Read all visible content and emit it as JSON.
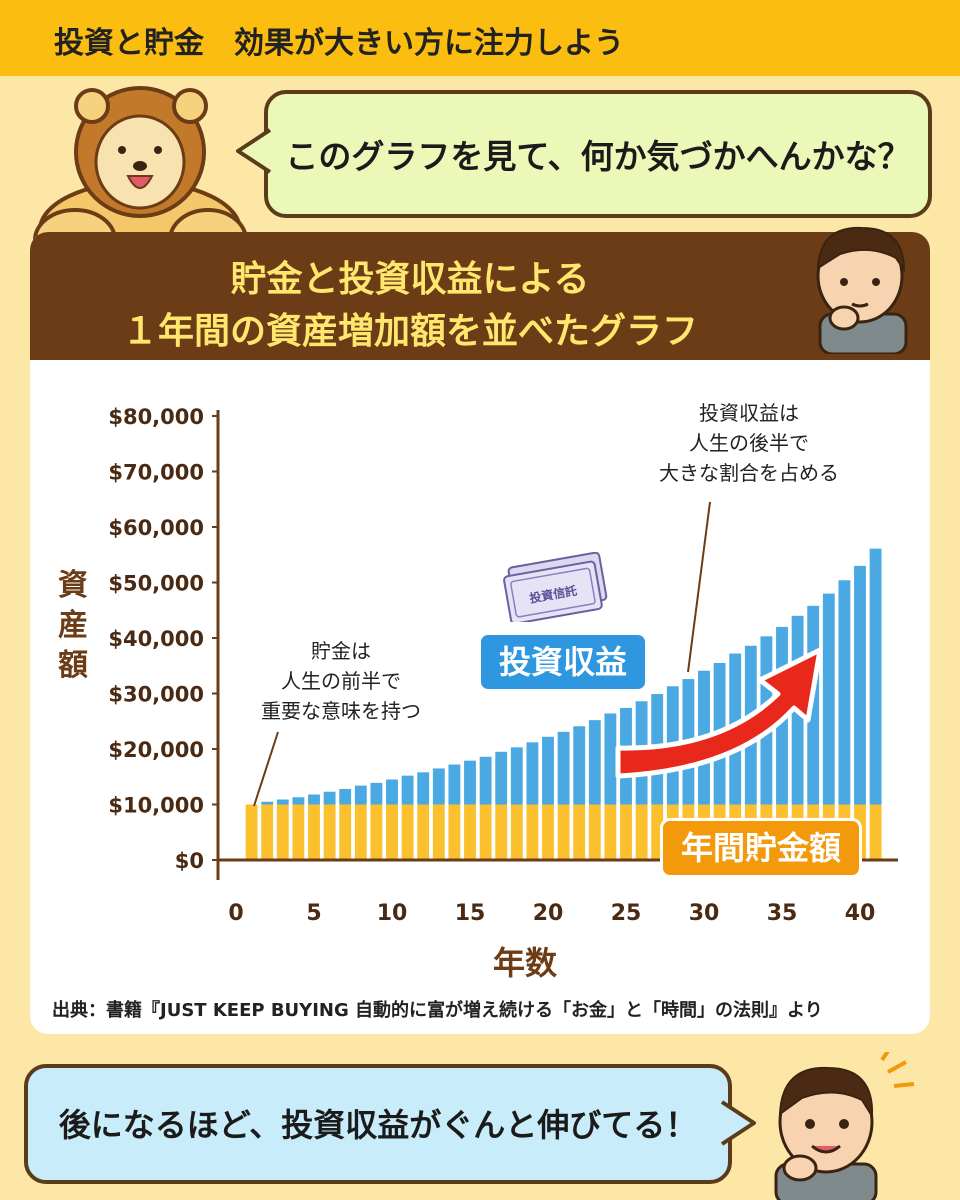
{
  "header": {
    "title": "投資と貯金　効果が大きい方に注力しよう"
  },
  "bubble_top": {
    "text": "このグラフを見て、何か気づかへんかな？"
  },
  "card": {
    "title_line1": "貯金と投資収益による",
    "title_line2": "１年間の資産増加額を並べたグラフ"
  },
  "annotations": {
    "savings_note": [
      "貯金は",
      "人生の前半で",
      "重要な意味を持つ"
    ],
    "invest_note": [
      "投資収益は",
      "人生の後半で",
      "大きな割合を占める"
    ],
    "invest_label": "投資収益",
    "savings_label": "年間貯金額",
    "ticket_label": "投資信託"
  },
  "source": "出典：書籍『JUST KEEP BUYING 自動的に富が増え続ける「お金」と「時間」の法則』より",
  "bubble_bottom": {
    "text": "後になるほど、投資収益がぐんと伸びてる！"
  },
  "colors": {
    "savings": "#fbc02d",
    "investment": "#4aa8e3",
    "brown": "#6b3c15",
    "arrow": "#e8281a"
  },
  "chart_data": {
    "type": "bar",
    "stacked": true,
    "xlabel": "年数",
    "ylabel": "資産額",
    "xlim": [
      0,
      42
    ],
    "ylim": [
      0,
      80000
    ],
    "x_ticks": [
      0,
      5,
      10,
      15,
      20,
      25,
      30,
      35,
      40
    ],
    "y_ticks": [
      0,
      10000,
      20000,
      30000,
      40000,
      50000,
      60000,
      70000,
      80000
    ],
    "y_tick_labels": [
      "$0",
      "$10,000",
      "$20,000",
      "$30,000",
      "$40,000",
      "$50,000",
      "$60,000",
      "$70,000",
      "$80,000"
    ],
    "x": [
      1,
      2,
      3,
      4,
      5,
      6,
      7,
      8,
      9,
      10,
      11,
      12,
      13,
      14,
      15,
      16,
      17,
      18,
      19,
      20,
      21,
      22,
      23,
      24,
      25,
      26,
      27,
      28,
      29,
      30,
      31,
      32,
      33,
      34,
      35,
      36,
      37,
      38,
      39,
      40,
      41
    ],
    "series": [
      {
        "name": "年間貯金額",
        "values": [
          10000,
          10000,
          10000,
          10000,
          10000,
          10000,
          10000,
          10000,
          10000,
          10000,
          10000,
          10000,
          10000,
          10000,
          10000,
          10000,
          10000,
          10000,
          10000,
          10000,
          10000,
          10000,
          10000,
          10000,
          10000,
          10000,
          10000,
          10000,
          10000,
          10000,
          10000,
          10000,
          10000,
          10000,
          10000,
          10000,
          10000,
          10000,
          10000,
          10000,
          10000
        ]
      },
      {
        "name": "投資収益",
        "values": [
          0,
          500,
          900,
          1300,
          1800,
          2300,
          2800,
          3400,
          3900,
          4500,
          5200,
          5800,
          6500,
          7200,
          7900,
          8600,
          9500,
          10300,
          11200,
          12200,
          13100,
          14100,
          15200,
          16400,
          17400,
          18600,
          19900,
          21300,
          22600,
          24100,
          25500,
          27200,
          28600,
          30300,
          32000,
          34000,
          35800,
          38000,
          40400,
          43000,
          46100
        ]
      }
    ]
  }
}
